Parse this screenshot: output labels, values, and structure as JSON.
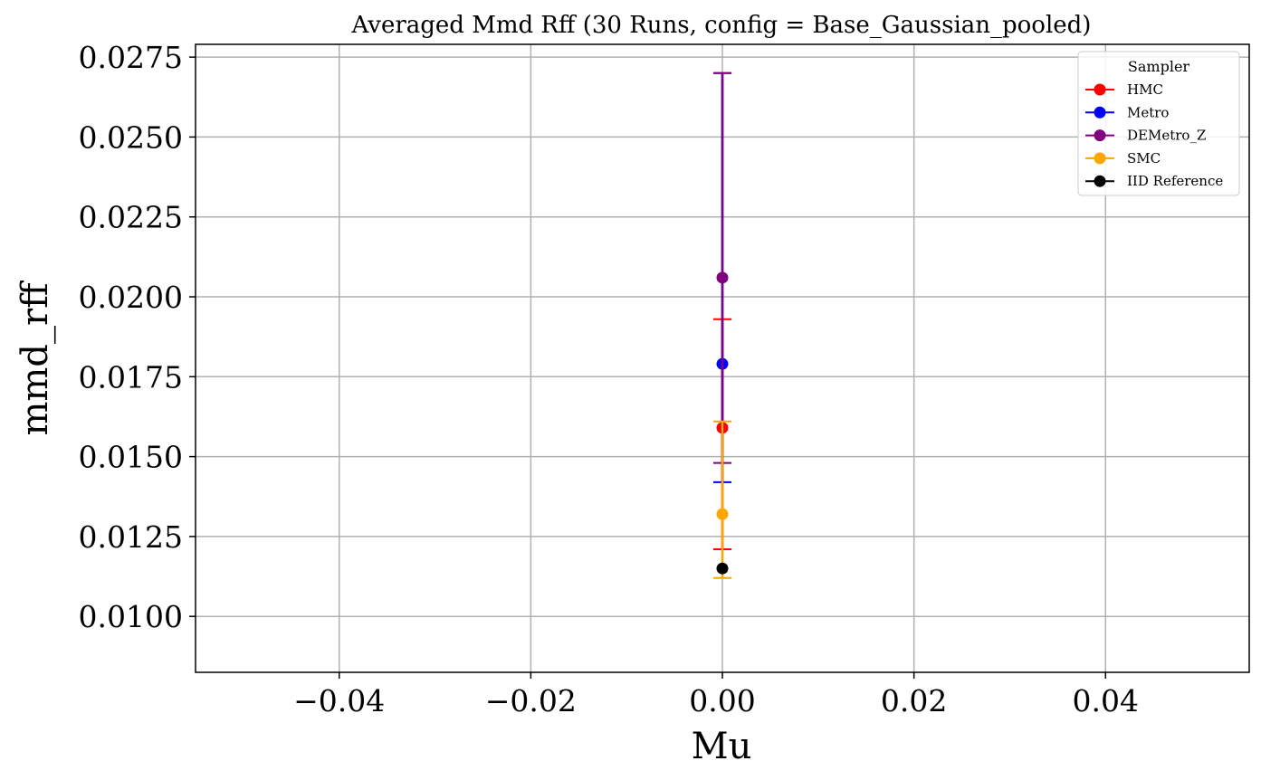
{
  "chart_data": {
    "type": "scatter",
    "title": "Averaged Mmd Rff (30 Runs, config = Base_Gaussian_pooled)",
    "xlabel": "Mu",
    "ylabel": "mmd_rff",
    "xlim": [
      -0.055,
      0.055
    ],
    "ylim": [
      0.00825,
      0.0279
    ],
    "x_ticks": [
      -0.04,
      -0.02,
      0.0,
      0.02,
      0.04
    ],
    "x_tick_labels": [
      "−0.04",
      "−0.02",
      "0.00",
      "0.02",
      "0.04"
    ],
    "y_ticks": [
      0.01,
      0.0125,
      0.015,
      0.0175,
      0.02,
      0.0225,
      0.025,
      0.0275
    ],
    "y_tick_labels": [
      "0.0100",
      "0.0125",
      "0.0150",
      "0.0175",
      "0.0200",
      "0.0225",
      "0.0250",
      "0.0275"
    ],
    "grid": true,
    "legend": {
      "title": "Sampler",
      "placement": "top-right"
    },
    "series": [
      {
        "name": "HMC",
        "color": "#ff0000",
        "x": [
          0.0
        ],
        "y": [
          0.0159
        ],
        "err_low": [
          0.0121
        ],
        "err_high": [
          0.0193
        ]
      },
      {
        "name": "Metro",
        "color": "#0000ff",
        "x": [
          0.0
        ],
        "y": [
          0.0179
        ],
        "err_low": [
          0.0142
        ],
        "err_high": [
          0.027
        ]
      },
      {
        "name": "DEMetro_Z",
        "color": "#800080",
        "x": [
          0.0
        ],
        "y": [
          0.0206
        ],
        "err_low": [
          0.0148
        ],
        "err_high": [
          0.027
        ]
      },
      {
        "name": "SMC",
        "color": "#ffa500",
        "x": [
          0.0
        ],
        "y": [
          0.0132
        ],
        "err_low": [
          0.0112
        ],
        "err_high": [
          0.0161
        ]
      },
      {
        "name": "IID Reference",
        "color": "#000000",
        "x": [
          0.0
        ],
        "y": [
          0.0115
        ],
        "err_low": [
          0.0115
        ],
        "err_high": [
          0.0115
        ]
      }
    ]
  }
}
